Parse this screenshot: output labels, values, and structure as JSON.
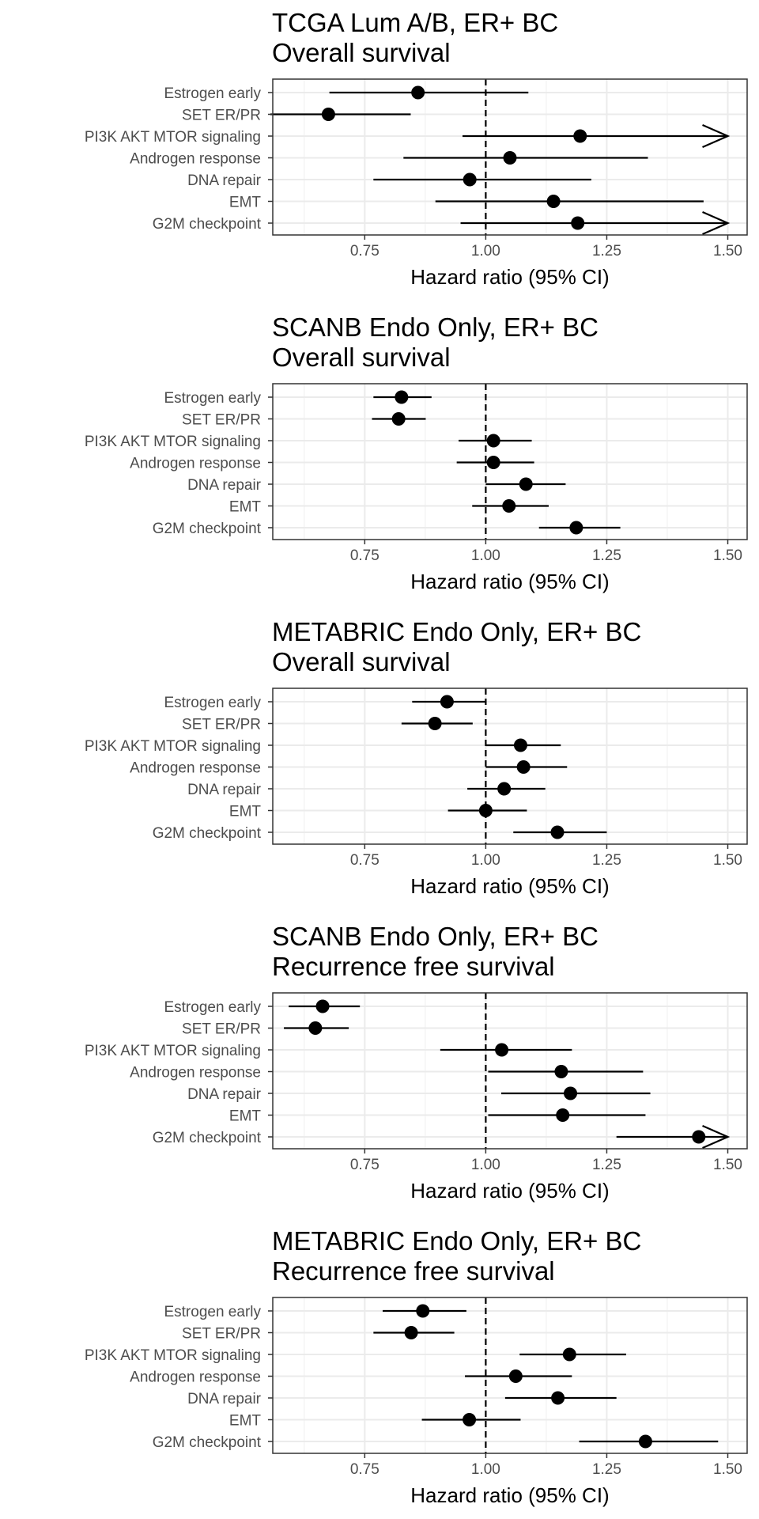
{
  "chart_data": [
    {
      "type": "forest",
      "title": [
        "TCGA Lum A/B, ER+ BC",
        "Overall survival"
      ],
      "xlabel": "Hazard ratio (95% CI)",
      "xlim": [
        0.56,
        1.54
      ],
      "x_ticks": [
        "0.75",
        "1.00",
        "1.25",
        "1.50"
      ],
      "reference_line": 1.0,
      "grid": true,
      "categories": [
        "Estrogen early",
        "SET ER/PR",
        "PI3K AKT MTOR signaling",
        "Androgen response",
        "DNA repair",
        "EMT",
        "G2M checkpoint"
      ],
      "hr": [
        0.86,
        0.675,
        1.195,
        1.05,
        0.967,
        1.14,
        1.19
      ],
      "lower": [
        0.677,
        0.555,
        0.952,
        0.83,
        0.768,
        0.896,
        0.948
      ],
      "upper": [
        1.088,
        0.845,
        1.5,
        1.335,
        1.218,
        1.45,
        1.5
      ],
      "arrow_right": [
        false,
        false,
        true,
        false,
        false,
        false,
        true
      ],
      "arrow_left": [
        false,
        false,
        false,
        false,
        false,
        false,
        false
      ]
    },
    {
      "type": "forest",
      "title": [
        "SCANB Endo Only, ER+ BC",
        "Overall survival"
      ],
      "xlabel": "Hazard ratio (95% CI)",
      "xlim": [
        0.56,
        1.54
      ],
      "x_ticks": [
        "0.75",
        "1.00",
        "1.25",
        "1.50"
      ],
      "reference_line": 1.0,
      "grid": true,
      "categories": [
        "Estrogen early",
        "SET ER/PR",
        "PI3K AKT MTOR signaling",
        "Androgen response",
        "DNA repair",
        "EMT",
        "G2M checkpoint"
      ],
      "hr": [
        0.826,
        0.82,
        1.016,
        1.016,
        1.083,
        1.048,
        1.187
      ],
      "lower": [
        0.768,
        0.765,
        0.944,
        0.94,
        1.0,
        0.972,
        1.11
      ],
      "upper": [
        0.888,
        0.876,
        1.095,
        1.1,
        1.165,
        1.13,
        1.278
      ],
      "arrow_right": [
        false,
        false,
        false,
        false,
        false,
        false,
        false
      ],
      "arrow_left": [
        false,
        false,
        false,
        false,
        false,
        false,
        false
      ]
    },
    {
      "type": "forest",
      "title": [
        "METABRIC Endo Only, ER+ BC",
        "Overall survival"
      ],
      "xlabel": "Hazard ratio (95% CI)",
      "xlim": [
        0.56,
        1.54
      ],
      "x_ticks": [
        "0.75",
        "1.00",
        "1.25",
        "1.50"
      ],
      "reference_line": 1.0,
      "grid": true,
      "categories": [
        "Estrogen early",
        "SET ER/PR",
        "PI3K AKT MTOR signaling",
        "Androgen response",
        "DNA repair",
        "EMT",
        "G2M checkpoint"
      ],
      "hr": [
        0.92,
        0.895,
        1.072,
        1.078,
        1.038,
        1.0,
        1.148
      ],
      "lower": [
        0.848,
        0.826,
        1.0,
        1.0,
        0.962,
        0.922,
        1.057
      ],
      "upper": [
        1.0,
        0.973,
        1.155,
        1.168,
        1.123,
        1.085,
        1.25
      ],
      "arrow_right": [
        false,
        false,
        false,
        false,
        false,
        false,
        false
      ],
      "arrow_left": [
        false,
        false,
        false,
        false,
        false,
        false,
        false
      ]
    },
    {
      "type": "forest",
      "title": [
        "SCANB Endo Only, ER+ BC",
        "Recurrence free survival"
      ],
      "xlabel": "Hazard ratio (95% CI)",
      "xlim": [
        0.56,
        1.54
      ],
      "x_ticks": [
        "0.75",
        "1.00",
        "1.25",
        "1.50"
      ],
      "reference_line": 1.0,
      "grid": true,
      "categories": [
        "Estrogen early",
        "SET ER/PR",
        "PI3K AKT MTOR signaling",
        "Androgen response",
        "DNA repair",
        "EMT",
        "G2M checkpoint"
      ],
      "hr": [
        0.663,
        0.648,
        1.033,
        1.156,
        1.175,
        1.159,
        1.44
      ],
      "lower": [
        0.593,
        0.583,
        0.906,
        1.005,
        1.032,
        1.005,
        1.27
      ],
      "upper": [
        0.74,
        0.717,
        1.178,
        1.325,
        1.34,
        1.33,
        1.5
      ],
      "arrow_right": [
        false,
        false,
        false,
        false,
        false,
        false,
        true
      ],
      "arrow_left": [
        false,
        false,
        false,
        false,
        false,
        false,
        false
      ]
    },
    {
      "type": "forest",
      "title": [
        "METABRIC Endo Only, ER+ BC",
        "Recurrence free survival"
      ],
      "xlabel": "Hazard ratio (95% CI)",
      "xlim": [
        0.56,
        1.54
      ],
      "x_ticks": [
        "0.75",
        "1.00",
        "1.25",
        "1.50"
      ],
      "reference_line": 1.0,
      "grid": true,
      "categories": [
        "Estrogen early",
        "SET ER/PR",
        "PI3K AKT MTOR signaling",
        "Androgen response",
        "DNA repair",
        "EMT",
        "G2M checkpoint"
      ],
      "hr": [
        0.87,
        0.846,
        1.173,
        1.062,
        1.149,
        0.966,
        1.33
      ],
      "lower": [
        0.787,
        0.768,
        1.07,
        0.957,
        1.04,
        0.868,
        1.193
      ],
      "upper": [
        0.96,
        0.935,
        1.29,
        1.178,
        1.27,
        1.072,
        1.48
      ],
      "arrow_right": [
        false,
        false,
        false,
        false,
        false,
        false,
        false
      ],
      "arrow_left": [
        false,
        false,
        false,
        false,
        false,
        false,
        false
      ]
    }
  ]
}
